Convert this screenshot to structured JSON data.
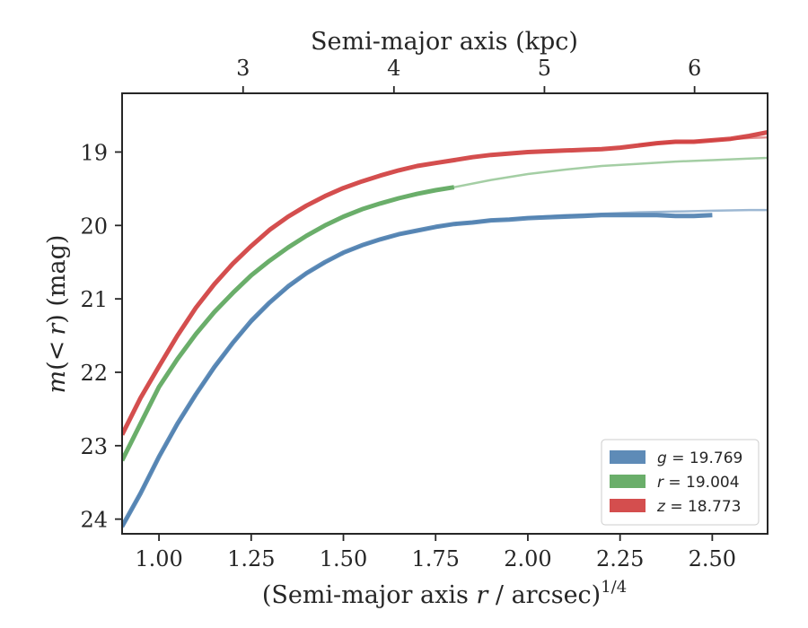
{
  "chart_data": {
    "type": "line",
    "xlabel": "(Semi-major axis r / arcsec)",
    "xlabel_parts": {
      "pre": "(Semi-major axis ",
      "var": "r",
      "post": " / arcsec)",
      "sup": "1/4"
    },
    "ylabel": "m(<r) (mag)",
    "ylabel_parts": {
      "m": "m",
      "open": "(",
      "lt": "<",
      "r": "r",
      "close": ")",
      "unit": " (mag)"
    },
    "top_xlabel": "Semi-major axis (kpc)",
    "xlim": [
      0.9,
      2.65
    ],
    "ylim": [
      24.2,
      18.2
    ],
    "y_inverted": true,
    "x_ticks": [
      1.0,
      1.25,
      1.5,
      1.75,
      2.0,
      2.25,
      2.5
    ],
    "x_tick_labels": [
      "1.00",
      "1.25",
      "1.50",
      "1.75",
      "2.00",
      "2.25",
      "2.50"
    ],
    "y_ticks": [
      19,
      20,
      21,
      22,
      23,
      24
    ],
    "y_tick_labels": [
      "19",
      "20",
      "21",
      "22",
      "23",
      "24"
    ],
    "top_ticks_x": [
      1.228,
      1.637,
      2.045,
      2.452
    ],
    "top_tick_labels": [
      "3",
      "4",
      "5",
      "6"
    ],
    "grid": false,
    "legend_position": "lower-right",
    "series": [
      {
        "name": "g = 19.769",
        "legend_var": "g",
        "legend_value": "= 19.769",
        "color": "#4c7eaf",
        "x": [
          0.9,
          0.95,
          1.0,
          1.05,
          1.1,
          1.15,
          1.2,
          1.25,
          1.3,
          1.35,
          1.4,
          1.45,
          1.5,
          1.55,
          1.6,
          1.65,
          1.7,
          1.75,
          1.8,
          1.85,
          1.9,
          1.95,
          2.0,
          2.05,
          2.1,
          2.15,
          2.2,
          2.25,
          2.3,
          2.35,
          2.4,
          2.45,
          2.5
        ],
        "y": [
          24.1,
          23.65,
          23.15,
          22.7,
          22.3,
          21.93,
          21.6,
          21.3,
          21.05,
          20.83,
          20.65,
          20.5,
          20.37,
          20.27,
          20.19,
          20.12,
          20.07,
          20.02,
          19.98,
          19.96,
          19.93,
          19.92,
          19.9,
          19.89,
          19.88,
          19.87,
          19.86,
          19.86,
          19.86,
          19.86,
          19.87,
          19.87,
          19.86
        ],
        "model_x": [
          0.9,
          1.0,
          1.1,
          1.2,
          1.3,
          1.4,
          1.5,
          1.6,
          1.7,
          1.8,
          1.9,
          2.0,
          2.1,
          2.2,
          2.3,
          2.4,
          2.5,
          2.6,
          2.65
        ],
        "model_y": [
          24.12,
          23.15,
          22.3,
          21.6,
          21.05,
          20.65,
          20.37,
          20.19,
          20.07,
          19.98,
          19.93,
          19.89,
          19.86,
          19.84,
          19.82,
          19.81,
          19.8,
          19.79,
          19.79
        ]
      },
      {
        "name": "r = 19.004",
        "legend_var": "r",
        "legend_value": "= 19.004",
        "color": "#5aa55a",
        "x": [
          0.9,
          0.95,
          1.0,
          1.05,
          1.1,
          1.15,
          1.2,
          1.25,
          1.3,
          1.35,
          1.4,
          1.45,
          1.5,
          1.55,
          1.6,
          1.65,
          1.7,
          1.75,
          1.8
        ],
        "y": [
          23.2,
          22.7,
          22.2,
          21.82,
          21.48,
          21.18,
          20.92,
          20.68,
          20.48,
          20.3,
          20.14,
          20.0,
          19.88,
          19.78,
          19.7,
          19.63,
          19.57,
          19.52,
          19.48
        ],
        "model_x": [
          1.8,
          1.9,
          2.0,
          2.1,
          2.2,
          2.3,
          2.4,
          2.5,
          2.6,
          2.65
        ],
        "model_y": [
          19.48,
          19.38,
          19.3,
          19.24,
          19.19,
          19.16,
          19.13,
          19.11,
          19.09,
          19.08
        ]
      },
      {
        "name": "z = 18.773",
        "legend_var": "z",
        "legend_value": "= 18.773",
        "color": "#cf3b3b",
        "x": [
          0.9,
          0.95,
          1.0,
          1.05,
          1.1,
          1.15,
          1.2,
          1.25,
          1.3,
          1.35,
          1.4,
          1.45,
          1.5,
          1.55,
          1.6,
          1.65,
          1.7,
          1.75,
          1.8,
          1.85,
          1.9,
          1.95,
          2.0,
          2.05,
          2.1,
          2.15,
          2.2,
          2.25,
          2.3,
          2.35,
          2.4,
          2.45,
          2.5,
          2.55,
          2.6,
          2.65
        ],
        "y": [
          22.85,
          22.35,
          21.92,
          21.5,
          21.12,
          20.8,
          20.52,
          20.28,
          20.06,
          19.88,
          19.73,
          19.6,
          19.49,
          19.4,
          19.32,
          19.25,
          19.19,
          19.15,
          19.11,
          19.07,
          19.04,
          19.02,
          19.0,
          18.99,
          18.98,
          18.97,
          18.96,
          18.94,
          18.91,
          18.88,
          18.86,
          18.86,
          18.84,
          18.82,
          18.78,
          18.73
        ],
        "model_x": [
          2.3,
          2.4,
          2.5,
          2.6,
          2.65
        ],
        "model_y": [
          18.9,
          18.87,
          18.84,
          18.81,
          18.8
        ]
      }
    ]
  }
}
